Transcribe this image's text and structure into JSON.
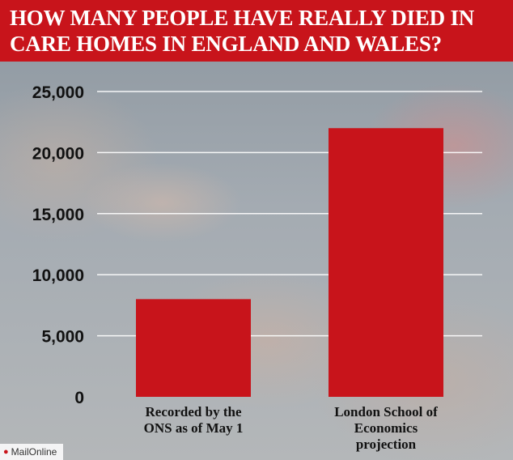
{
  "title": "HOW MANY PEOPLE HAVE REALLY DIED IN\nCARE HOMES IN ENGLAND AND WALES?",
  "credit": "MailOnline",
  "colors": {
    "bar": "#c8141b",
    "header": "#c8141b",
    "gridline": "#ffffff",
    "text": "#111111"
  },
  "chart_data": {
    "type": "bar",
    "title": "HOW MANY PEOPLE HAVE REALLY DIED IN CARE HOMES IN ENGLAND AND WALES?",
    "categories": [
      [
        "Recorded by the",
        "ONS as of May 1"
      ],
      [
        "London School of",
        "Economics",
        "projection"
      ]
    ],
    "values": [
      8000,
      22000
    ],
    "ylim": [
      0,
      25000
    ],
    "yticks": [
      0,
      5000,
      10000,
      15000,
      20000,
      25000
    ],
    "ytick_labels": [
      "0",
      "5,000",
      "10,000",
      "15,000",
      "20,000",
      "25,000"
    ],
    "xlabel": "",
    "ylabel": "",
    "grid": true,
    "legend": "none"
  }
}
